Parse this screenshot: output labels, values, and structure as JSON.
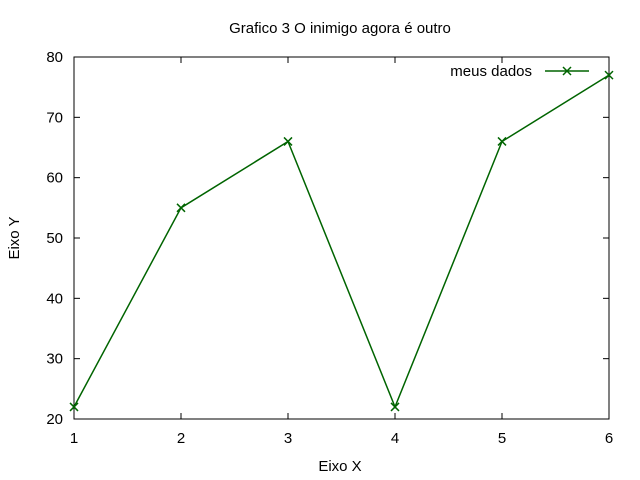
{
  "chart_data": {
    "type": "line",
    "title": "Grafico 3 O inimigo agora é outro",
    "xlabel": "Eixo X",
    "ylabel": "Eixo Y",
    "xlim": [
      1,
      6
    ],
    "ylim": [
      20,
      80
    ],
    "x_ticks": [
      1,
      2,
      3,
      4,
      5,
      6
    ],
    "y_ticks": [
      20,
      30,
      40,
      50,
      60,
      70,
      80
    ],
    "grid": false,
    "legend_position": "top-right",
    "series": [
      {
        "name": "meus dados",
        "color": "#006400",
        "marker": "x",
        "x": [
          1,
          2,
          3,
          4,
          5,
          6
        ],
        "y": [
          22,
          55,
          66,
          22,
          66,
          77
        ]
      }
    ]
  }
}
